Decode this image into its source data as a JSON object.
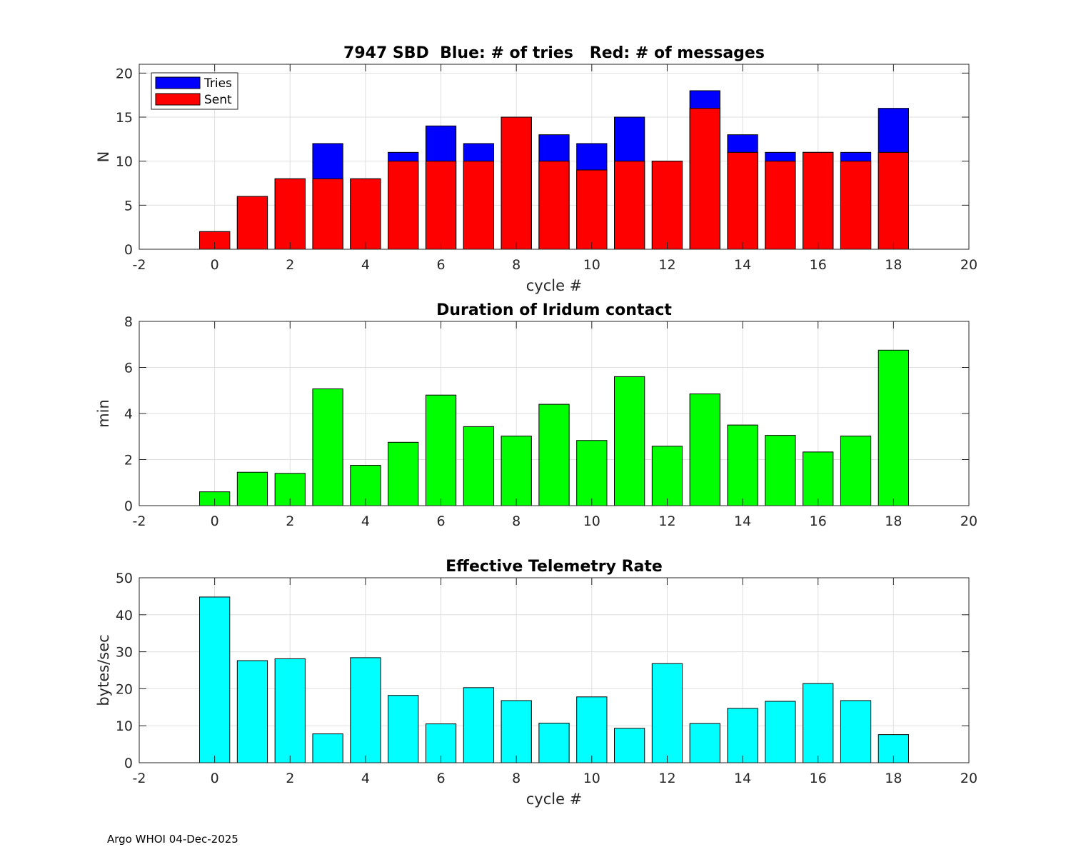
{
  "footer": "Argo WHOI 04-Dec-2025",
  "colors": {
    "tries": "#0000ff",
    "sent": "#ff0000",
    "duration": "#00ff00",
    "rate": "#00ffff"
  },
  "chart_data": [
    {
      "type": "bar",
      "title": "7947 SBD  Blue: # of tries   Red: # of messages",
      "xlabel": "cycle #",
      "ylabel": "N",
      "xlim": [
        -2,
        20
      ],
      "ylim": [
        0,
        21
      ],
      "xticks": [
        -2,
        0,
        2,
        4,
        6,
        8,
        10,
        12,
        14,
        16,
        18,
        20
      ],
      "yticks": [
        0,
        5,
        10,
        15,
        20
      ],
      "legend": {
        "position": "top-left",
        "entries": [
          "Tries",
          "Sent"
        ]
      },
      "x": [
        0,
        1,
        2,
        3,
        4,
        5,
        6,
        7,
        8,
        9,
        10,
        11,
        12,
        13,
        14,
        15,
        16,
        17,
        18
      ],
      "series": [
        {
          "name": "Tries",
          "values": [
            2,
            6,
            8,
            12,
            8,
            11,
            14,
            12,
            15,
            13,
            12,
            15,
            10,
            18,
            13,
            11,
            11,
            11,
            16
          ]
        },
        {
          "name": "Sent",
          "values": [
            2,
            6,
            8,
            8,
            8,
            10,
            10,
            10,
            15,
            10,
            9,
            10,
            10,
            16,
            11,
            10,
            11,
            10,
            11
          ]
        }
      ]
    },
    {
      "type": "bar",
      "title": "Duration of Iridum contact",
      "xlabel": "",
      "ylabel": "min",
      "xlim": [
        -2,
        20
      ],
      "ylim": [
        0,
        8
      ],
      "xticks": [
        -2,
        0,
        2,
        4,
        6,
        8,
        10,
        12,
        14,
        16,
        18,
        20
      ],
      "yticks": [
        0,
        2,
        4,
        6,
        8
      ],
      "x": [
        0,
        1,
        2,
        3,
        4,
        5,
        6,
        7,
        8,
        9,
        10,
        11,
        12,
        13,
        14,
        15,
        16,
        17,
        18
      ],
      "series": [
        {
          "name": "Duration",
          "values": [
            0.6,
            1.45,
            1.4,
            5.07,
            1.75,
            2.75,
            4.8,
            3.43,
            3.02,
            4.4,
            2.83,
            5.6,
            2.58,
            4.85,
            3.5,
            3.05,
            2.33,
            3.02,
            6.75
          ]
        }
      ]
    },
    {
      "type": "bar",
      "title": "Effective Telemetry Rate",
      "xlabel": "cycle #",
      "ylabel": "bytes/sec",
      "xlim": [
        -2,
        20
      ],
      "ylim": [
        0,
        50
      ],
      "xticks": [
        -2,
        0,
        2,
        4,
        6,
        8,
        10,
        12,
        14,
        16,
        18,
        20
      ],
      "yticks": [
        0,
        10,
        20,
        30,
        40,
        50
      ],
      "x": [
        0,
        1,
        2,
        3,
        4,
        5,
        6,
        7,
        8,
        9,
        10,
        11,
        12,
        13,
        14,
        15,
        16,
        17,
        18
      ],
      "series": [
        {
          "name": "Rate",
          "values": [
            44.8,
            27.6,
            28.1,
            7.8,
            28.4,
            18.2,
            10.5,
            20.3,
            16.8,
            10.7,
            17.8,
            9.3,
            26.8,
            10.6,
            14.7,
            16.6,
            21.4,
            16.8,
            7.6
          ]
        }
      ]
    }
  ]
}
